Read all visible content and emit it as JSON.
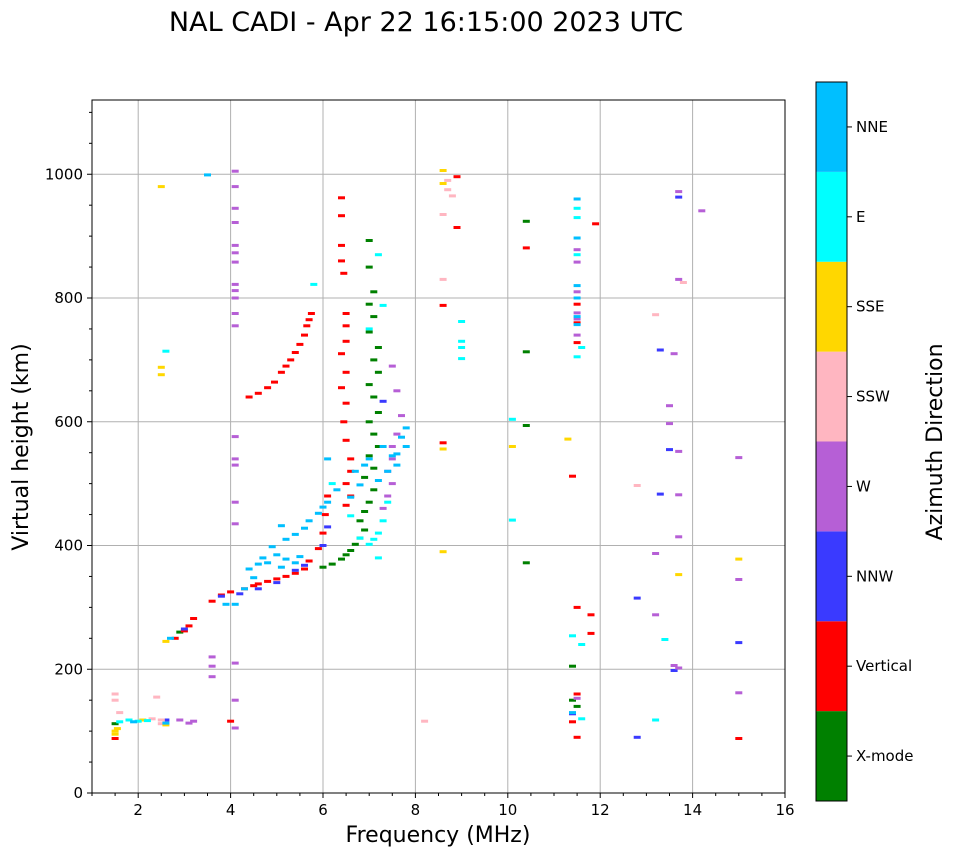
{
  "chart_data": {
    "type": "scatter",
    "title": "NAL CADI - Apr 22 16:15:00 2023 UTC",
    "xlabel": "Frequency (MHz)",
    "ylabel": "Virtual height (km)",
    "xlim": [
      1,
      16
    ],
    "ylim": [
      0,
      1120
    ],
    "xticks": [
      2,
      4,
      6,
      8,
      10,
      12,
      14,
      16
    ],
    "yticks": [
      0,
      200,
      400,
      600,
      800,
      1000
    ],
    "xtick_labels": [
      "2",
      "4",
      "6",
      "8",
      "10",
      "12",
      "14",
      "16"
    ],
    "ytick_labels": [
      "0",
      "200",
      "400",
      "600",
      "800",
      "1000"
    ],
    "grid": true,
    "colorbar": {
      "label": "Azimuth Direction",
      "categories": [
        "X-mode",
        "Vertical",
        "NNW",
        "W",
        "SSW",
        "SSE",
        "E",
        "NNE"
      ],
      "colors": [
        "#008000",
        "#ff0000",
        "#3a3aff",
        "#b65fd6",
        "#ffb6c1",
        "#ffd700",
        "#00ffff",
        "#00bfff"
      ]
    },
    "series": [
      {
        "name": "X-mode",
        "points": [
          [
            1.5,
            112
          ],
          [
            2.9,
            260
          ],
          [
            6.0,
            365
          ],
          [
            6.2,
            370
          ],
          [
            6.4,
            378
          ],
          [
            6.5,
            385
          ],
          [
            6.6,
            392
          ],
          [
            6.7,
            402
          ],
          [
            6.8,
            412
          ],
          [
            6.9,
            425
          ],
          [
            6.8,
            440
          ],
          [
            6.9,
            455
          ],
          [
            7.0,
            470
          ],
          [
            7.1,
            490
          ],
          [
            6.9,
            510
          ],
          [
            7.1,
            525
          ],
          [
            7.0,
            545
          ],
          [
            7.2,
            560
          ],
          [
            7.1,
            580
          ],
          [
            7.0,
            600
          ],
          [
            7.2,
            615
          ],
          [
            7.1,
            640
          ],
          [
            7.0,
            660
          ],
          [
            7.2,
            680
          ],
          [
            7.1,
            700
          ],
          [
            7.2,
            720
          ],
          [
            7.0,
            745
          ],
          [
            7.1,
            770
          ],
          [
            7.0,
            790
          ],
          [
            7.1,
            810
          ],
          [
            7.0,
            850
          ],
          [
            7.0,
            893
          ],
          [
            10.4,
            924
          ],
          [
            10.4,
            713
          ],
          [
            10.4,
            594
          ],
          [
            10.4,
            372
          ],
          [
            11.4,
            205
          ],
          [
            11.4,
            150
          ],
          [
            11.5,
            140
          ]
        ]
      },
      {
        "name": "Vertical",
        "points": [
          [
            1.5,
            88
          ],
          [
            2.8,
            250
          ],
          [
            3.0,
            262
          ],
          [
            3.1,
            270
          ],
          [
            3.2,
            282
          ],
          [
            3.6,
            310
          ],
          [
            3.8,
            320
          ],
          [
            4.0,
            325
          ],
          [
            4.3,
            330
          ],
          [
            4.5,
            335
          ],
          [
            4.6,
            338
          ],
          [
            4.8,
            342
          ],
          [
            5.0,
            346
          ],
          [
            5.2,
            350
          ],
          [
            5.4,
            355
          ],
          [
            5.6,
            362
          ],
          [
            5.7,
            375
          ],
          [
            5.9,
            395
          ],
          [
            6.0,
            420
          ],
          [
            6.05,
            450
          ],
          [
            6.1,
            480
          ],
          [
            4.4,
            640
          ],
          [
            4.6,
            646
          ],
          [
            4.8,
            655
          ],
          [
            4.95,
            664
          ],
          [
            5.1,
            680
          ],
          [
            5.2,
            690
          ],
          [
            5.3,
            700
          ],
          [
            5.4,
            712
          ],
          [
            5.5,
            725
          ],
          [
            5.6,
            740
          ],
          [
            5.65,
            755
          ],
          [
            5.7,
            765
          ],
          [
            5.75,
            775
          ],
          [
            6.4,
            962
          ],
          [
            6.4,
            933
          ],
          [
            6.4,
            885
          ],
          [
            6.4,
            860
          ],
          [
            6.45,
            840
          ],
          [
            6.5,
            775
          ],
          [
            6.5,
            755
          ],
          [
            6.5,
            730
          ],
          [
            6.4,
            710
          ],
          [
            6.5,
            680
          ],
          [
            6.4,
            655
          ],
          [
            6.5,
            630
          ],
          [
            6.45,
            600
          ],
          [
            6.5,
            570
          ],
          [
            6.6,
            540
          ],
          [
            6.6,
            520
          ],
          [
            6.5,
            500
          ],
          [
            6.6,
            480
          ],
          [
            6.5,
            465
          ],
          [
            4.0,
            116
          ],
          [
            8.6,
            788
          ],
          [
            8.6,
            566
          ],
          [
            8.9,
            914
          ],
          [
            8.9,
            996
          ],
          [
            10.4,
            881
          ],
          [
            11.5,
            790
          ],
          [
            11.5,
            760
          ],
          [
            11.5,
            728
          ],
          [
            11.4,
            512
          ],
          [
            11.5,
            300
          ],
          [
            11.8,
            288
          ],
          [
            11.8,
            258
          ],
          [
            11.9,
            920
          ],
          [
            11.4,
            115
          ],
          [
            11.5,
            160
          ],
          [
            11.5,
            90
          ],
          [
            15.0,
            88
          ]
        ]
      },
      {
        "name": "NNW",
        "points": [
          [
            2.6,
            118
          ],
          [
            3.0,
            265
          ],
          [
            3.8,
            318
          ],
          [
            4.2,
            322
          ],
          [
            4.6,
            330
          ],
          [
            5.0,
            340
          ],
          [
            5.4,
            360
          ],
          [
            5.6,
            368
          ],
          [
            6.0,
            400
          ],
          [
            6.1,
            430
          ],
          [
            13.3,
            716
          ],
          [
            13.3,
            483
          ],
          [
            13.5,
            555
          ],
          [
            13.6,
            198
          ],
          [
            12.8,
            315
          ],
          [
            12.8,
            90
          ],
          [
            13.7,
            963
          ],
          [
            15.0,
            243
          ],
          [
            11.4,
            128
          ],
          [
            7.3,
            633
          ]
        ]
      },
      {
        "name": "W",
        "points": [
          [
            3.1,
            113
          ],
          [
            3.2,
            116
          ],
          [
            4.1,
            1005
          ],
          [
            4.1,
            980
          ],
          [
            4.1,
            945
          ],
          [
            4.1,
            922
          ],
          [
            4.1,
            885
          ],
          [
            4.1,
            873
          ],
          [
            4.1,
            858
          ],
          [
            4.1,
            822
          ],
          [
            4.1,
            812
          ],
          [
            4.1,
            800
          ],
          [
            4.1,
            775
          ],
          [
            4.1,
            755
          ],
          [
            4.1,
            576
          ],
          [
            4.1,
            540
          ],
          [
            4.1,
            530
          ],
          [
            4.1,
            470
          ],
          [
            4.1,
            435
          ],
          [
            4.1,
            210
          ],
          [
            4.1,
            150
          ],
          [
            4.1,
            105
          ],
          [
            3.6,
            220
          ],
          [
            3.6,
            205
          ],
          [
            3.6,
            188
          ],
          [
            2.9,
            118
          ],
          [
            7.5,
            690
          ],
          [
            7.6,
            650
          ],
          [
            7.7,
            610
          ],
          [
            7.6,
            580
          ],
          [
            7.5,
            560
          ],
          [
            7.5,
            540
          ],
          [
            7.4,
            520
          ],
          [
            7.5,
            500
          ],
          [
            7.4,
            480
          ],
          [
            7.3,
            460
          ],
          [
            11.5,
            878
          ],
          [
            11.5,
            858
          ],
          [
            11.5,
            810
          ],
          [
            11.5,
            776
          ],
          [
            11.5,
            766
          ],
          [
            11.5,
            740
          ],
          [
            11.5,
            153
          ],
          [
            13.7,
            972
          ],
          [
            13.7,
            830
          ],
          [
            13.6,
            710
          ],
          [
            13.5,
            626
          ],
          [
            13.5,
            597
          ],
          [
            13.7,
            552
          ],
          [
            13.7,
            482
          ],
          [
            13.7,
            414
          ],
          [
            13.2,
            387
          ],
          [
            13.2,
            288
          ],
          [
            13.6,
            206
          ],
          [
            13.7,
            202
          ],
          [
            14.2,
            941
          ],
          [
            15.0,
            542
          ],
          [
            15.0,
            345
          ],
          [
            15.0,
            162
          ]
        ]
      },
      {
        "name": "SSW",
        "points": [
          [
            1.5,
            160
          ],
          [
            1.5,
            150
          ],
          [
            1.6,
            130
          ],
          [
            2.4,
            155
          ],
          [
            2.5,
            118
          ],
          [
            2.5,
            112
          ],
          [
            2.3,
            120
          ],
          [
            8.6,
            935
          ],
          [
            8.6,
            830
          ],
          [
            8.7,
            975
          ],
          [
            8.8,
            965
          ],
          [
            8.2,
            116
          ],
          [
            12.8,
            497
          ],
          [
            13.2,
            773
          ],
          [
            13.8,
            825
          ],
          [
            8.7,
            990
          ]
        ]
      },
      {
        "name": "SSE",
        "points": [
          [
            1.5,
            95
          ],
          [
            1.5,
            100
          ],
          [
            1.55,
            104
          ],
          [
            2.1,
            118
          ],
          [
            2.5,
            980
          ],
          [
            2.5,
            688
          ],
          [
            2.5,
            676
          ],
          [
            2.6,
            110
          ],
          [
            2.6,
            245
          ],
          [
            8.6,
            1006
          ],
          [
            8.6,
            985
          ],
          [
            8.6,
            556
          ],
          [
            8.6,
            390
          ],
          [
            10.1,
            560
          ],
          [
            11.3,
            572
          ],
          [
            13.7,
            353
          ],
          [
            15.0,
            378
          ]
        ]
      },
      {
        "name": "E",
        "points": [
          [
            1.6,
            115
          ],
          [
            1.8,
            118
          ],
          [
            2.0,
            116
          ],
          [
            2.2,
            117
          ],
          [
            2.6,
            714
          ],
          [
            5.8,
            822
          ],
          [
            6.2,
            500
          ],
          [
            6.6,
            448
          ],
          [
            6.8,
            412
          ],
          [
            7.0,
            402
          ],
          [
            7.1,
            410
          ],
          [
            7.2,
            420
          ],
          [
            7.3,
            440
          ],
          [
            7.4,
            470
          ],
          [
            7.2,
            380
          ],
          [
            7.0,
            750
          ],
          [
            7.2,
            870
          ],
          [
            7.3,
            788
          ],
          [
            9.0,
            762
          ],
          [
            9.0,
            730
          ],
          [
            9.0,
            720
          ],
          [
            9.0,
            702
          ],
          [
            10.1,
            604
          ],
          [
            10.1,
            441
          ],
          [
            11.5,
            870
          ],
          [
            11.5,
            705
          ],
          [
            11.6,
            720
          ],
          [
            11.4,
            254
          ],
          [
            11.6,
            240
          ],
          [
            11.6,
            120
          ],
          [
            13.4,
            248
          ],
          [
            13.2,
            118
          ],
          [
            11.5,
            945
          ],
          [
            11.5,
            930
          ]
        ]
      },
      {
        "name": "NNE",
        "points": [
          [
            1.9,
            115
          ],
          [
            2.6,
            113
          ],
          [
            2.7,
            250
          ],
          [
            3.5,
            999
          ],
          [
            3.9,
            305
          ],
          [
            4.1,
            305
          ],
          [
            4.3,
            330
          ],
          [
            4.5,
            348
          ],
          [
            4.4,
            362
          ],
          [
            4.6,
            370
          ],
          [
            4.7,
            380
          ],
          [
            4.8,
            372
          ],
          [
            5.0,
            385
          ],
          [
            5.1,
            365
          ],
          [
            5.2,
            378
          ],
          [
            5.4,
            372
          ],
          [
            5.5,
            382
          ],
          [
            4.9,
            398
          ],
          [
            5.2,
            410
          ],
          [
            5.4,
            418
          ],
          [
            5.6,
            428
          ],
          [
            5.1,
            432
          ],
          [
            5.7,
            440
          ],
          [
            5.9,
            452
          ],
          [
            6.0,
            462
          ],
          [
            6.1,
            470
          ],
          [
            6.3,
            490
          ],
          [
            6.6,
            478
          ],
          [
            6.8,
            498
          ],
          [
            6.9,
            530
          ],
          [
            7.0,
            540
          ],
          [
            7.2,
            505
          ],
          [
            7.4,
            520
          ],
          [
            7.6,
            530
          ],
          [
            7.8,
            560
          ],
          [
            7.7,
            575
          ],
          [
            7.8,
            590
          ],
          [
            7.6,
            548
          ],
          [
            7.3,
            560
          ],
          [
            7.5,
            545
          ],
          [
            6.7,
            520
          ],
          [
            6.1,
            540
          ],
          [
            11.5,
            960
          ],
          [
            11.5,
            897
          ],
          [
            11.5,
            820
          ],
          [
            11.5,
            800
          ],
          [
            11.5,
            770
          ],
          [
            11.5,
            757
          ],
          [
            11.4,
            130
          ]
        ]
      }
    ]
  }
}
